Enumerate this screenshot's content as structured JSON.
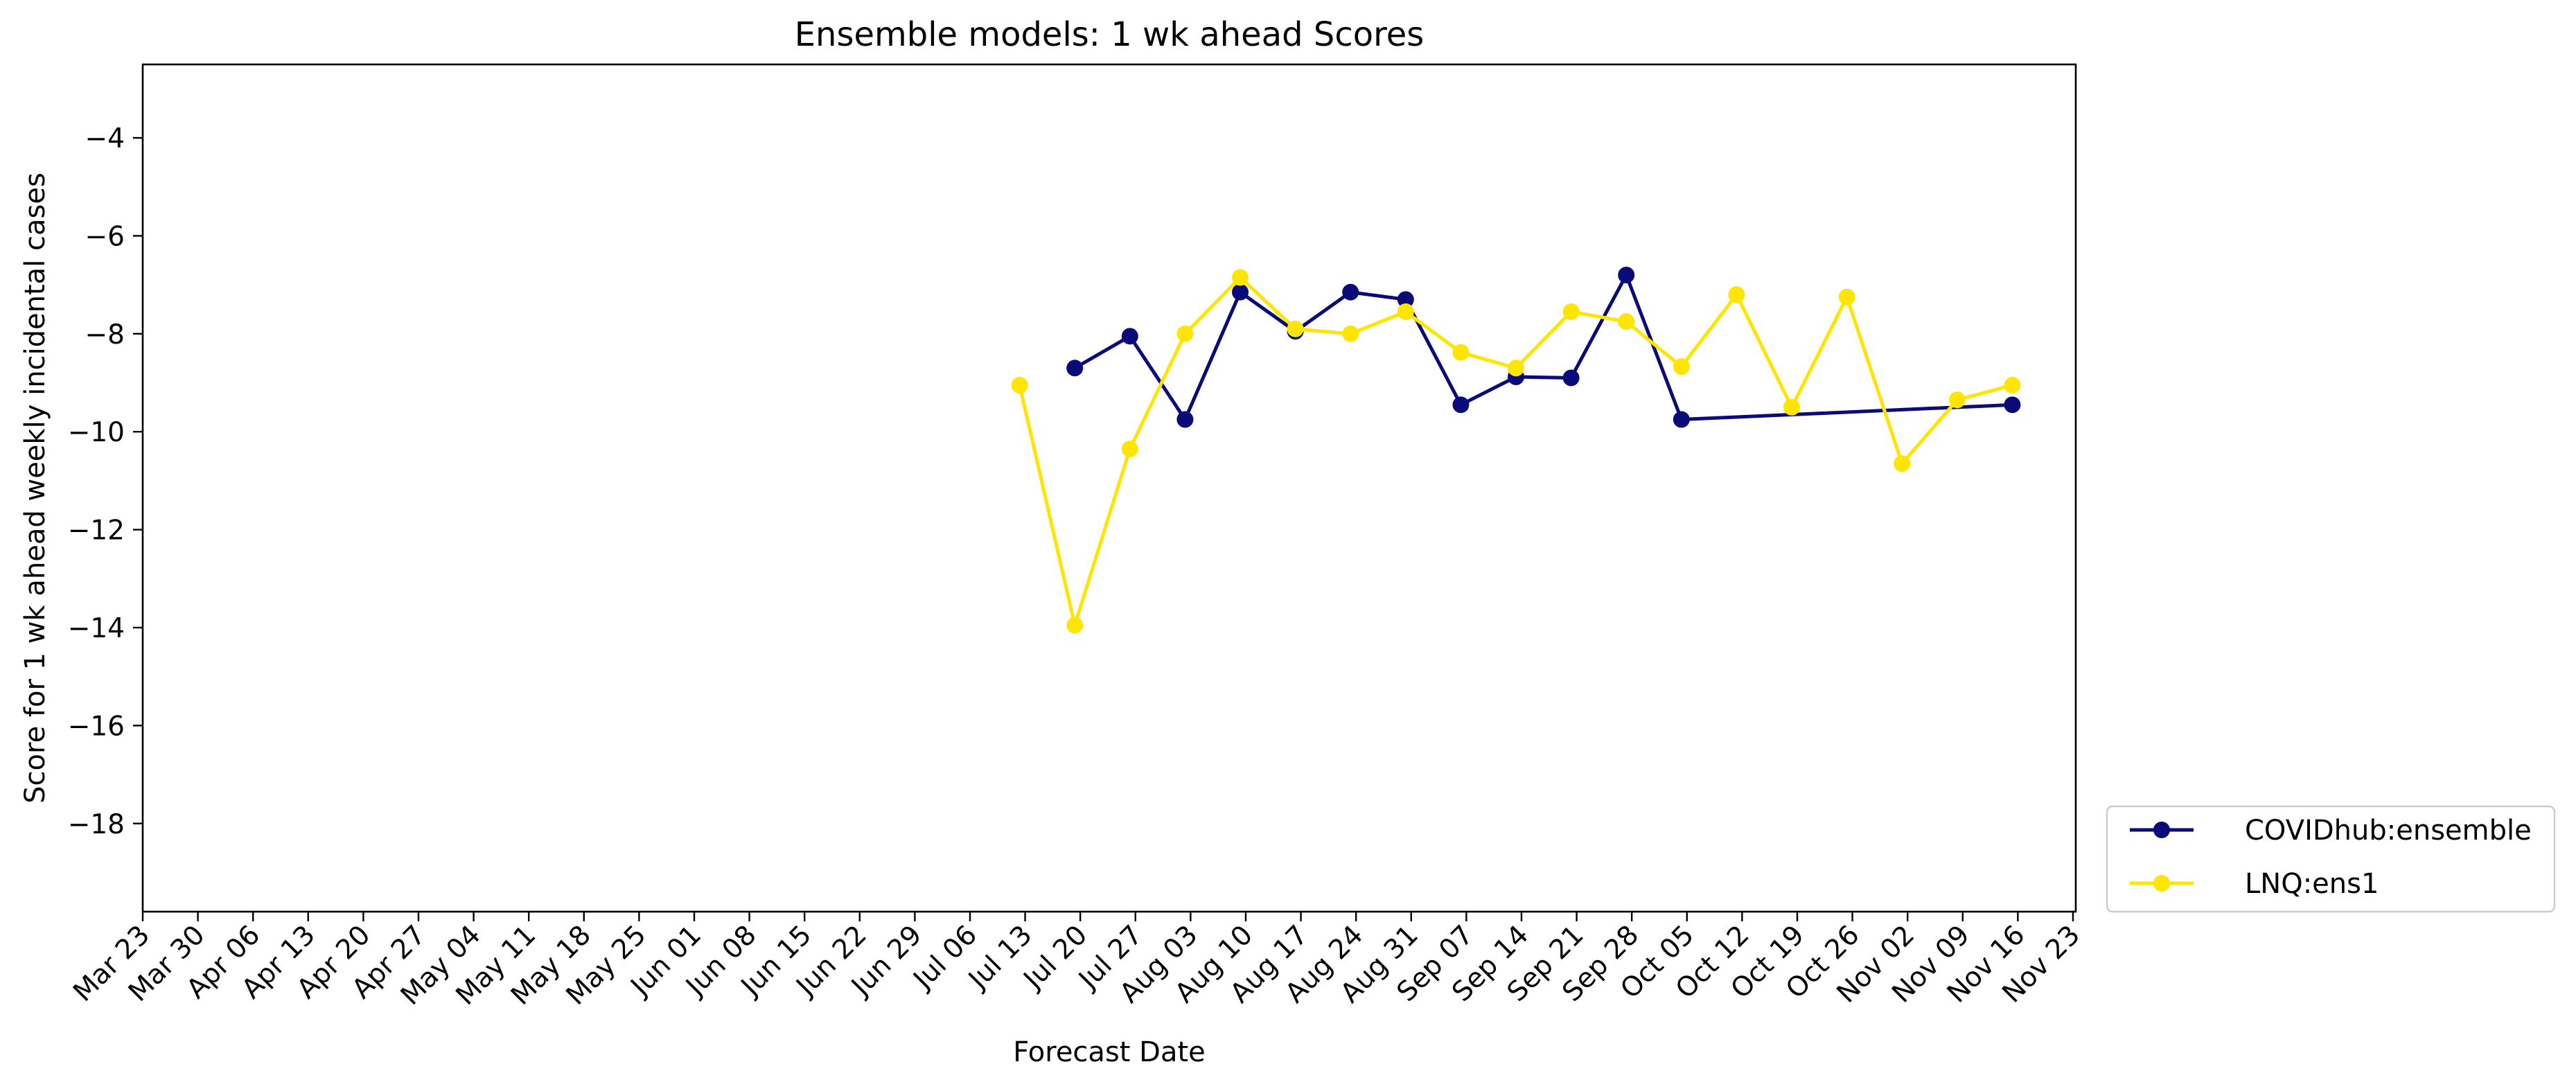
{
  "chart_data": {
    "type": "line",
    "title": "Ensemble models: 1 wk ahead Scores",
    "xlabel": "Forecast Date",
    "ylabel": "Score for 1 wk ahead weekly incidental cases",
    "ylim": [
      -19.8,
      -2.5
    ],
    "yticks": [
      -4,
      -6,
      -8,
      -10,
      -12,
      -14,
      -16,
      -18
    ],
    "ytick_labels": [
      "−4",
      "−6",
      "−8",
      "−10",
      "−12",
      "−14",
      "−16",
      "−18"
    ],
    "categories": [
      "Mar 23",
      "Mar 30",
      "Apr 06",
      "Apr 13",
      "Apr 20",
      "Apr 27",
      "May 04",
      "May 11",
      "May 18",
      "May 25",
      "Jun 01",
      "Jun 08",
      "Jun 15",
      "Jun 22",
      "Jun 29",
      "Jul 06",
      "Jul 13",
      "Jul 20",
      "Jul 27",
      "Aug 03",
      "Aug 10",
      "Aug 17",
      "Aug 24",
      "Aug 31",
      "Sep 07",
      "Sep 14",
      "Sep 21",
      "Sep 28",
      "Oct 05",
      "Oct 12",
      "Oct 19",
      "Oct 26",
      "Nov 02",
      "Nov 09",
      "Nov 16",
      "Nov 23"
    ],
    "grid": false,
    "legend_position": "outside-bottom-right",
    "series": [
      {
        "name": "COVIDhub:ensemble",
        "color": "#0a0a78",
        "x": [
          16.9,
          17.9,
          18.9,
          19.9,
          20.9,
          21.9,
          22.9,
          23.9,
          24.9,
          25.9,
          26.9,
          27.9,
          33.9
        ],
        "y": [
          -8.7,
          -8.05,
          -9.75,
          -7.15,
          -7.95,
          -7.15,
          -7.3,
          -9.45,
          -8.88,
          -8.9,
          -6.8,
          -9.75,
          -9.45
        ]
      },
      {
        "name": "LNQ:ens1",
        "color": "#ffe500",
        "x": [
          15.9,
          16.9,
          17.9,
          18.9,
          19.9,
          20.9,
          21.9,
          22.9,
          23.9,
          24.9,
          25.9,
          26.9,
          27.9,
          28.9,
          29.9,
          30.9,
          31.9,
          32.9,
          33.9
        ],
        "y": [
          -9.05,
          -13.95,
          -10.35,
          -8.0,
          -6.85,
          -7.9,
          -8.0,
          -7.55,
          -8.38,
          -8.7,
          -7.55,
          -7.75,
          -8.67,
          -7.2,
          -9.5,
          -7.25,
          -10.65,
          -9.35,
          -9.05
        ]
      }
    ]
  }
}
